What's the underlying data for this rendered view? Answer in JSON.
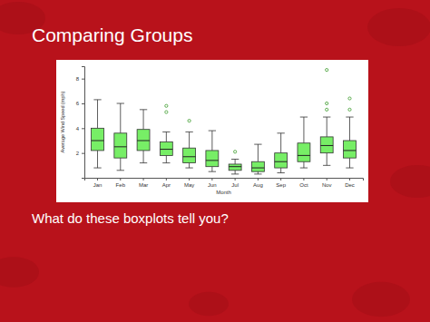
{
  "slide": {
    "title": "Comparing Groups",
    "question": "What do these boxplots tell you?"
  },
  "chart_data": {
    "type": "box",
    "x_label": "Month",
    "y_label": "Average Wind Speed (mph)",
    "categories": [
      "Jan",
      "Feb",
      "Mar",
      "Apr",
      "May",
      "Jun",
      "Jul",
      "Aug",
      "Sep",
      "Oct",
      "Nov",
      "Dec"
    ],
    "whisker_low": [
      0.8,
      0.6,
      1.2,
      1.2,
      0.8,
      0.5,
      0.3,
      0.3,
      0.4,
      0.8,
      1.0,
      0.8
    ],
    "q1": [
      2.2,
      1.6,
      2.2,
      1.8,
      1.2,
      0.9,
      0.6,
      0.5,
      0.8,
      1.3,
      2.0,
      1.6
    ],
    "median": [
      3.0,
      2.5,
      3.0,
      2.3,
      1.7,
      1.4,
      0.9,
      0.8,
      1.3,
      1.8,
      2.6,
      2.2
    ],
    "q3": [
      4.0,
      3.6,
      3.9,
      2.9,
      2.4,
      2.2,
      1.1,
      1.3,
      2.0,
      2.8,
      3.3,
      3.0
    ],
    "whisker_high": [
      6.3,
      6.0,
      5.5,
      3.7,
      3.7,
      3.8,
      1.5,
      2.7,
      3.6,
      4.9,
      4.9,
      4.9
    ],
    "outliers": [
      [],
      [],
      [],
      [
        5.3,
        5.8
      ],
      [
        4.6
      ],
      [],
      [
        2.1
      ],
      [],
      [],
      [],
      [
        5.5,
        6.0,
        8.7
      ],
      [
        5.5,
        6.4
      ]
    ],
    "color": "#77ee66",
    "ylim": [
      0,
      9
    ],
    "yticks": [
      2,
      4,
      6,
      8
    ]
  }
}
